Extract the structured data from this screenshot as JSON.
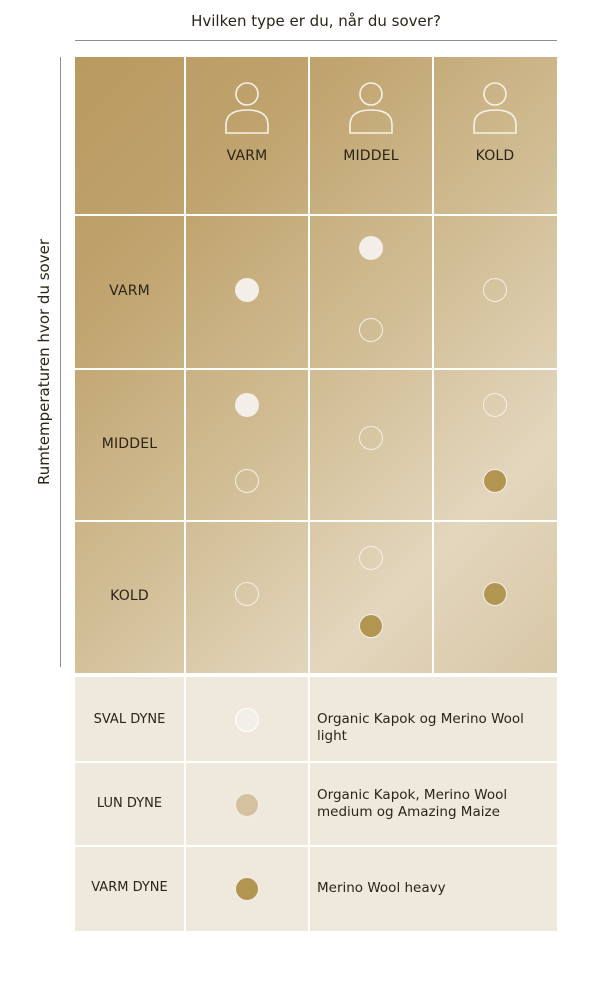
{
  "header": {
    "top_title": "Hvilken type er du, når du sover?",
    "side_title": "Rumtemperaturen hvor du sover"
  },
  "matrix": {
    "columns": [
      {
        "label": "VARM",
        "icon": "person-icon"
      },
      {
        "label": "MIDDEL",
        "icon": "person-icon"
      },
      {
        "label": "KOLD",
        "icon": "person-icon"
      }
    ],
    "rows": [
      {
        "label": "VARM",
        "cells": [
          [
            "sval"
          ],
          [
            "sval",
            "lun"
          ],
          [
            "lun"
          ]
        ]
      },
      {
        "label": "MIDDEL",
        "cells": [
          [
            "sval",
            "lun"
          ],
          [
            "lun"
          ],
          [
            "lun",
            "varm"
          ]
        ]
      },
      {
        "label": "KOLD",
        "cells": [
          [
            "lun"
          ],
          [
            "lun",
            "varm"
          ],
          [
            "varm"
          ]
        ]
      }
    ]
  },
  "legend": [
    {
      "key": "sval",
      "label": "SVAL DYNE",
      "text": "Organic Kapok og Merino Wool light"
    },
    {
      "key": "lun",
      "label": "LUN DYNE",
      "text": "Organic Kapok, Merino Wool medium og Amazing Maize"
    },
    {
      "key": "varm",
      "label": "VARM DYNE",
      "text": "Merino Wool heavy"
    }
  ],
  "colors": {
    "sval": "#f3efe8",
    "lun": "#d3c1a0",
    "varm": "#b39552",
    "matrix_dark": "#b99a60",
    "matrix_light": "#e3d6bd",
    "legend_bg": "#efe8dc"
  }
}
